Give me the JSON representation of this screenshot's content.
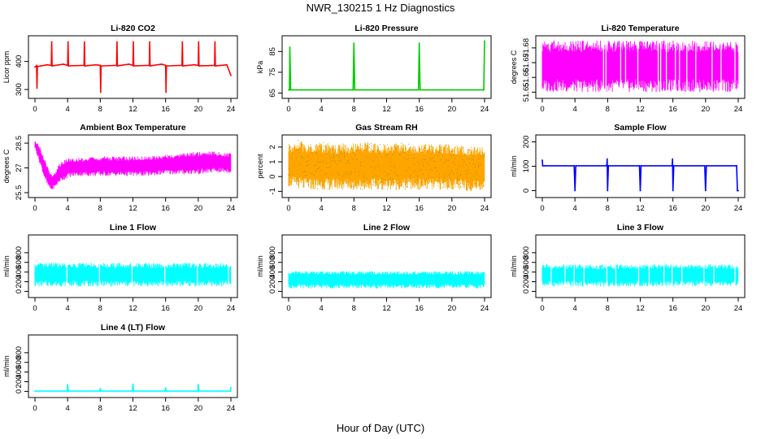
{
  "figure": {
    "title": "NWR_130215  1 Hz Diagnostics",
    "xlabel": "Hour of Day (UTC)"
  },
  "chart_data": [
    {
      "type": "line",
      "title": "Li-820 CO2",
      "ylabel": "Licor ppm",
      "color": "#ff0000",
      "xlim": [
        0,
        24
      ],
      "ylim": [
        280,
        480
      ],
      "xticks": [
        0,
        4,
        8,
        12,
        16,
        20,
        24
      ],
      "yticks": [
        300,
        400
      ],
      "series": [
        {
          "x": [
            0,
            0.2,
            0.25,
            0.3,
            1.5,
            2,
            2.05,
            2.1,
            3.5,
            4,
            4.05,
            4.1,
            6,
            6.05,
            6.1,
            7.5,
            8,
            8.05,
            8.1,
            10,
            10.05,
            10.1,
            11.5,
            12,
            12.05,
            12.1,
            14,
            14.05,
            14.1,
            15.5,
            16,
            16.05,
            16.1,
            18,
            18.05,
            18.1,
            19.5,
            20,
            20.05,
            20.1,
            22,
            22.05,
            22.1,
            23.5,
            24
          ],
          "y": [
            380,
            385,
            305,
            382,
            388,
            386,
            470,
            384,
            390,
            386,
            470,
            384,
            386,
            470,
            384,
            388,
            386,
            290,
            384,
            386,
            470,
            384,
            390,
            386,
            470,
            384,
            386,
            470,
            384,
            390,
            386,
            290,
            384,
            386,
            470,
            384,
            388,
            386,
            470,
            384,
            386,
            470,
            384,
            388,
            350
          ]
        }
      ]
    },
    {
      "type": "line",
      "title": "Li-820 Pressure",
      "ylabel": "kPa",
      "color": "#00cc00",
      "xlim": [
        0,
        24
      ],
      "ylim": [
        64,
        91
      ],
      "xticks": [
        0,
        4,
        8,
        12,
        16,
        20,
        24
      ],
      "yticks": [
        65,
        75,
        85
      ],
      "series": [
        {
          "x": [
            0,
            0.1,
            0.15,
            0.25,
            4,
            7.9,
            8,
            8.1,
            12,
            15.9,
            16,
            16.1,
            20,
            23.9,
            24
          ],
          "y": [
            66.5,
            66.5,
            87,
            66.5,
            66.5,
            66.5,
            89,
            66.5,
            66.5,
            66.5,
            89,
            66.5,
            66.5,
            66.5,
            90
          ]
        }
      ]
    },
    {
      "type": "area",
      "title": "Li-820 Temperature",
      "ylabel": "degrees C",
      "color": "#ff00ff",
      "xlim": [
        0,
        24
      ],
      "ylim": [
        51.648,
        51.686
      ],
      "xticks": [
        0,
        4,
        8,
        12,
        16,
        20,
        24
      ],
      "yticks": [
        51.65,
        51.66,
        51.67,
        51.68
      ],
      "series": [
        {
          "x": [
            0,
            24
          ],
          "ymin": [
            51.65,
            51.65
          ],
          "ymax": [
            51.685,
            51.685
          ]
        }
      ],
      "gaps_x": [
        7.5,
        7.8,
        9.6,
        10.2,
        11.7,
        14.2,
        14.5,
        15.2,
        16.3,
        16.8,
        17.7,
        18.8,
        20.8,
        21.9,
        23.6
      ]
    },
    {
      "type": "area",
      "title": "Ambient Box Temperature",
      "ylabel": "degrees C",
      "color": "#ff00ff",
      "xlim": [
        0,
        24
      ],
      "ylim": [
        25.4,
        28.8
      ],
      "xticks": [
        0,
        4,
        8,
        12,
        16,
        20,
        24
      ],
      "yticks": [
        25.5,
        27.0,
        28.5
      ],
      "series": [
        {
          "x": [
            0,
            0.5,
            1,
            1.5,
            2,
            2.5,
            3,
            4,
            5,
            6,
            8,
            10,
            12,
            14,
            16,
            18,
            20,
            22,
            24
          ],
          "ymin": [
            28.2,
            27.4,
            26.6,
            25.9,
            25.6,
            25.8,
            26.1,
            26.4,
            26.5,
            26.5,
            26.5,
            26.5,
            26.5,
            26.5,
            26.6,
            26.6,
            26.6,
            26.7,
            26.7
          ],
          "ymax": [
            28.7,
            28.4,
            27.8,
            27.2,
            26.6,
            26.8,
            27.3,
            27.6,
            27.6,
            27.6,
            27.7,
            27.7,
            27.7,
            27.7,
            27.8,
            27.9,
            28.0,
            28.0,
            27.9
          ]
        }
      ]
    },
    {
      "type": "area",
      "title": "Gas Stream RH",
      "ylabel": "percent",
      "color": "#ffa500",
      "color2": "#8b8b00",
      "xlim": [
        0,
        24
      ],
      "ylim": [
        -1.2,
        2.6
      ],
      "xticks": [
        0,
        4,
        8,
        12,
        16,
        20,
        24
      ],
      "yticks": [
        -1,
        0,
        1,
        2
      ],
      "series": [
        {
          "x": [
            0,
            1,
            2,
            4,
            6,
            8,
            10,
            12,
            14,
            16,
            18,
            20,
            22,
            24
          ],
          "ymin": [
            -0.7,
            -0.8,
            -0.9,
            -0.9,
            -0.9,
            -0.9,
            -0.9,
            -0.9,
            -0.9,
            -0.9,
            -0.9,
            -0.9,
            -1.0,
            -0.9
          ],
          "ymax": [
            2.2,
            2.5,
            2.3,
            2.3,
            2.2,
            2.3,
            2.3,
            2.2,
            2.3,
            2.2,
            2.2,
            2.2,
            2.1,
            2.0
          ]
        }
      ]
    },
    {
      "type": "line",
      "title": "Sample Flow",
      "ylabel": "ml/min",
      "color": "#0000ff",
      "xlim": [
        0,
        24
      ],
      "ylim": [
        -15,
        215
      ],
      "xticks": [
        0,
        4,
        8,
        12,
        16,
        20,
        24
      ],
      "yticks": [
        0,
        100,
        200
      ],
      "series": [
        {
          "x": [
            0,
            0.05,
            0.3,
            3.9,
            4,
            4.1,
            7.9,
            7.95,
            8,
            8.1,
            11.9,
            12,
            12.1,
            15.9,
            15.95,
            16,
            16.1,
            19.9,
            20,
            20.1,
            23.8,
            23.9,
            24
          ],
          "y": [
            125,
            102,
            102,
            102,
            0,
            102,
            102,
            130,
            0,
            102,
            102,
            0,
            102,
            102,
            130,
            0,
            102,
            102,
            0,
            102,
            102,
            0,
            0
          ]
        }
      ]
    },
    {
      "type": "area",
      "title": "Line 1 Flow",
      "ylabel": "ml/min",
      "color": "#00ffff",
      "xlim": [
        0,
        24
      ],
      "ylim": [
        -60,
        1100
      ],
      "xticks": [
        0,
        4,
        8,
        12,
        16,
        20,
        24
      ],
      "yticks": [
        0,
        200,
        400,
        600,
        800
      ],
      "series": [
        {
          "x": [
            0,
            24
          ],
          "ymin": [
            100,
            100
          ],
          "ymax": [
            590,
            590
          ]
        }
      ],
      "gaps_x": [
        3.9,
        7.9,
        11.9,
        15.9,
        19.9,
        23.7
      ]
    },
    {
      "type": "area",
      "title": "Line 2 Flow",
      "ylabel": "ml/min",
      "color": "#00ffff",
      "xlim": [
        0,
        24
      ],
      "ylim": [
        -60,
        1100
      ],
      "xticks": [
        0,
        4,
        8,
        12,
        16,
        20,
        24
      ],
      "yticks": [
        0,
        200,
        400,
        600,
        800
      ],
      "series": [
        {
          "x": [
            0,
            24
          ],
          "ymin": [
            60,
            60
          ],
          "ymax": [
            420,
            420
          ]
        }
      ],
      "gaps_x": []
    },
    {
      "type": "area",
      "title": "Line 3 Flow",
      "ylabel": "ml/min",
      "color": "#00ffff",
      "xlim": [
        0,
        24
      ],
      "ylim": [
        -60,
        1100
      ],
      "xticks": [
        0,
        4,
        8,
        12,
        16,
        20,
        24
      ],
      "yticks": [
        0,
        200,
        400,
        600,
        800
      ],
      "series": [
        {
          "x": [
            0,
            24
          ],
          "ymin": [
            100,
            100
          ],
          "ymax": [
            560,
            560
          ]
        }
      ],
      "gaps_x": [
        1.1,
        2.8,
        3.9,
        5.1,
        7.9,
        9.0,
        11.8,
        13.1,
        14.9,
        15.9,
        17.1,
        19.8,
        21.0,
        23.6
      ]
    },
    {
      "type": "line",
      "title": "Line 4 (LT) Flow",
      "ylabel": "ml/min",
      "color": "#00ffff",
      "xlim": [
        0,
        24
      ],
      "ylim": [
        -60,
        1100
      ],
      "xticks": [
        0,
        4,
        8,
        12,
        16,
        20,
        24
      ],
      "yticks": [
        0,
        200,
        400,
        600,
        800
      ],
      "series": [
        {
          "x": [
            0,
            3.95,
            4,
            4.1,
            7.95,
            8,
            8.1,
            11.95,
            12,
            12.1,
            15.95,
            16,
            16.1,
            19.95,
            20,
            20.1,
            23.95,
            24
          ],
          "y": [
            5,
            5,
            140,
            5,
            5,
            60,
            5,
            5,
            150,
            5,
            5,
            70,
            5,
            5,
            140,
            5,
            5,
            80
          ]
        }
      ]
    }
  ]
}
